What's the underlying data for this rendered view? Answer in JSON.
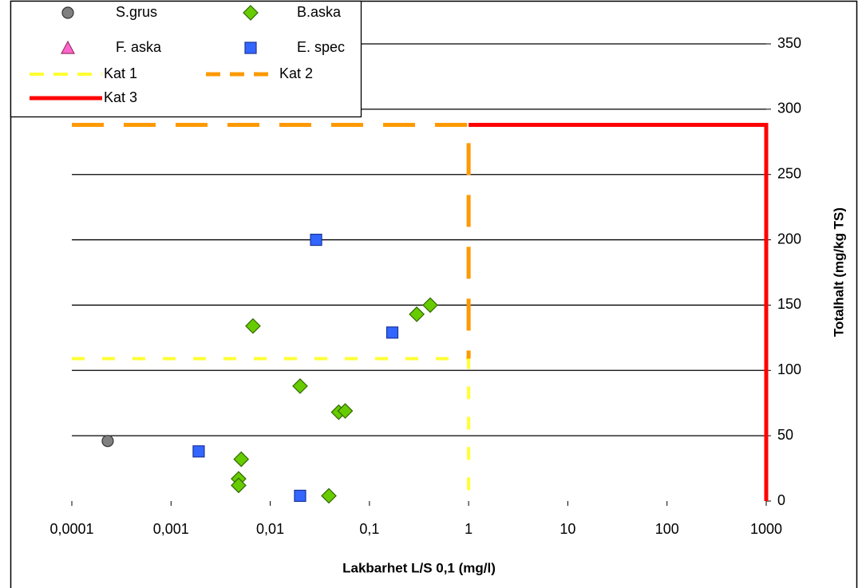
{
  "chart_data": {
    "type": "scatter",
    "x_label": "Lakbarhet L/S 0,1 (mg/l)",
    "y_label": "Totalhalt (mg/kg TS)",
    "xscale": "log",
    "xlim": [
      0.0001,
      1000
    ],
    "xticks": [
      {
        "value": 0.0001,
        "label": "0,0001"
      },
      {
        "value": 0.001,
        "label": "0,001"
      },
      {
        "value": 0.01,
        "label": "0,01"
      },
      {
        "value": 0.1,
        "label": "0,1"
      },
      1,
      10,
      100,
      1000
    ],
    "ylim": [
      0,
      350
    ],
    "yticks": [
      0,
      50,
      100,
      150,
      200,
      250,
      300,
      350
    ],
    "y_axis_side": "right",
    "grid": true,
    "legend": "top-left",
    "series": [
      {
        "name": "S.grus",
        "color": "#808080",
        "marker": "circle",
        "x": [
          0.00023
        ],
        "values": [
          46
        ]
      },
      {
        "name": "B.aska",
        "color": "#66cc00",
        "marker": "diamond",
        "x": [
          0.0067,
          0.02,
          0.049,
          0.057,
          0.0051,
          0.0048,
          0.0048,
          0.039,
          0.3,
          0.41
        ],
        "values": [
          134,
          88,
          68,
          69,
          32,
          17,
          12,
          4,
          143,
          150
        ]
      },
      {
        "name": "F. aska",
        "color": "#ff66cc",
        "marker": "triangle",
        "x": [],
        "values": []
      },
      {
        "name": "E. spec",
        "color": "#3366ff",
        "marker": "square",
        "x": [
          0.029,
          0.17,
          0.0019,
          0.02
        ],
        "values": [
          200,
          129,
          38,
          4
        ]
      },
      {
        "name": "Kat 1",
        "color": "#ffff33",
        "line": "dashed",
        "x": [
          0.0001,
          1,
          1
        ],
        "values": [
          109,
          109,
          0
        ]
      },
      {
        "name": "Kat 2",
        "color": "#ff9900",
        "line": "dashed",
        "x": [
          0.0001,
          1,
          1
        ],
        "values": [
          288,
          288,
          109
        ]
      },
      {
        "name": "Kat 3",
        "color": "#ff0000",
        "line": "solid",
        "x": [
          1,
          1000,
          1000
        ],
        "values": [
          288,
          288,
          0
        ]
      }
    ]
  }
}
